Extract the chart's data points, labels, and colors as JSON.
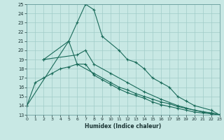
{
  "title": "",
  "xlabel": "Humidex (Indice chaleur)",
  "xlim": [
    0,
    23
  ],
  "ylim": [
    13,
    25
  ],
  "yticks": [
    13,
    14,
    15,
    16,
    17,
    18,
    19,
    20,
    21,
    22,
    23,
    24,
    25
  ],
  "xticks": [
    0,
    1,
    2,
    3,
    4,
    5,
    6,
    7,
    8,
    9,
    10,
    11,
    12,
    13,
    14,
    15,
    16,
    17,
    18,
    19,
    20,
    21,
    22,
    23
  ],
  "bg_color": "#c8e8e4",
  "grid_color": "#a0ccc8",
  "line_color": "#1a6b5a",
  "line1_x": [
    0,
    5,
    6,
    7,
    8,
    9,
    11,
    12,
    13,
    14,
    15,
    16,
    17,
    18,
    19,
    20,
    22,
    23
  ],
  "line1_y": [
    14,
    21,
    23,
    25,
    24.4,
    21.5,
    20,
    19,
    18.7,
    18,
    17,
    16.5,
    16,
    15,
    14.5,
    14,
    13.5,
    13
  ],
  "line2_x": [
    2,
    5,
    6,
    8,
    10,
    11,
    12,
    13,
    14,
    15,
    16,
    17,
    18,
    19,
    20,
    21,
    22,
    23
  ],
  "line2_y": [
    19,
    21,
    18.5,
    17.5,
    16.5,
    16,
    15.7,
    15.3,
    15,
    14.7,
    14.4,
    14.2,
    13.9,
    13.7,
    13.5,
    13.3,
    13.2,
    13
  ],
  "line3_x": [
    0,
    1,
    2,
    3,
    4,
    5,
    6,
    7,
    8,
    9,
    10,
    11,
    12,
    13,
    14,
    15,
    16,
    17,
    18,
    19,
    20,
    21,
    22,
    23
  ],
  "line3_y": [
    14,
    16.5,
    17,
    17.5,
    18,
    18.2,
    18.5,
    18.5,
    17.3,
    16.8,
    16.3,
    15.8,
    15.4,
    15.1,
    14.8,
    14.4,
    14.1,
    13.9,
    13.7,
    13.5,
    13.3,
    13.2,
    13.1,
    13
  ],
  "line4_x": [
    2,
    6,
    7,
    8,
    10,
    12,
    14,
    16,
    18,
    20,
    22,
    23
  ],
  "line4_y": [
    19,
    19.5,
    20,
    18.5,
    17.5,
    16.5,
    15.5,
    14.7,
    14.0,
    13.5,
    13.2,
    13
  ]
}
